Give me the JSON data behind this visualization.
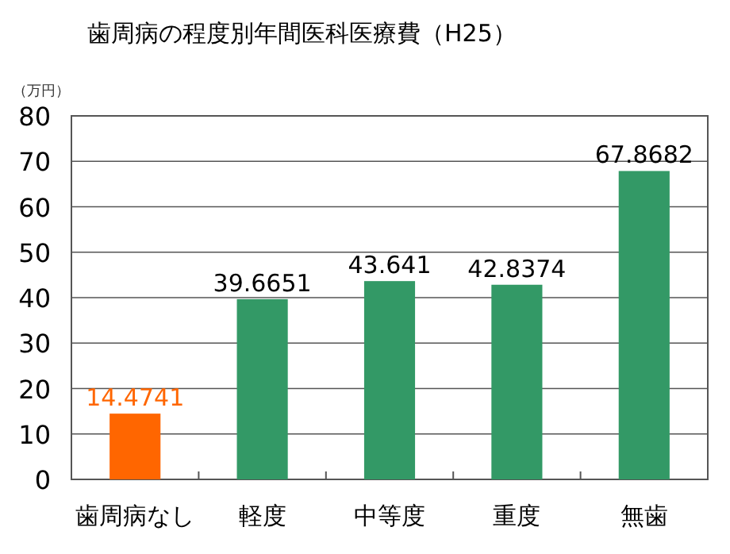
{
  "chart_data": {
    "type": "bar",
    "title": "歯周病の程度別年間医科医療費（H25）",
    "ylabel": "（万円）",
    "categories": [
      "歯周病なし",
      "軽度",
      "中等度",
      "重度",
      "無歯"
    ],
    "values": [
      14.4741,
      39.6651,
      43.641,
      42.8374,
      67.8682
    ],
    "colors": [
      "#ff6600",
      "#339966",
      "#339966",
      "#339966",
      "#339966"
    ],
    "ylim": [
      0,
      80
    ],
    "yticks": [
      0,
      10,
      20,
      30,
      40,
      50,
      60,
      70,
      80
    ],
    "grid": "y",
    "data_labels": true
  }
}
